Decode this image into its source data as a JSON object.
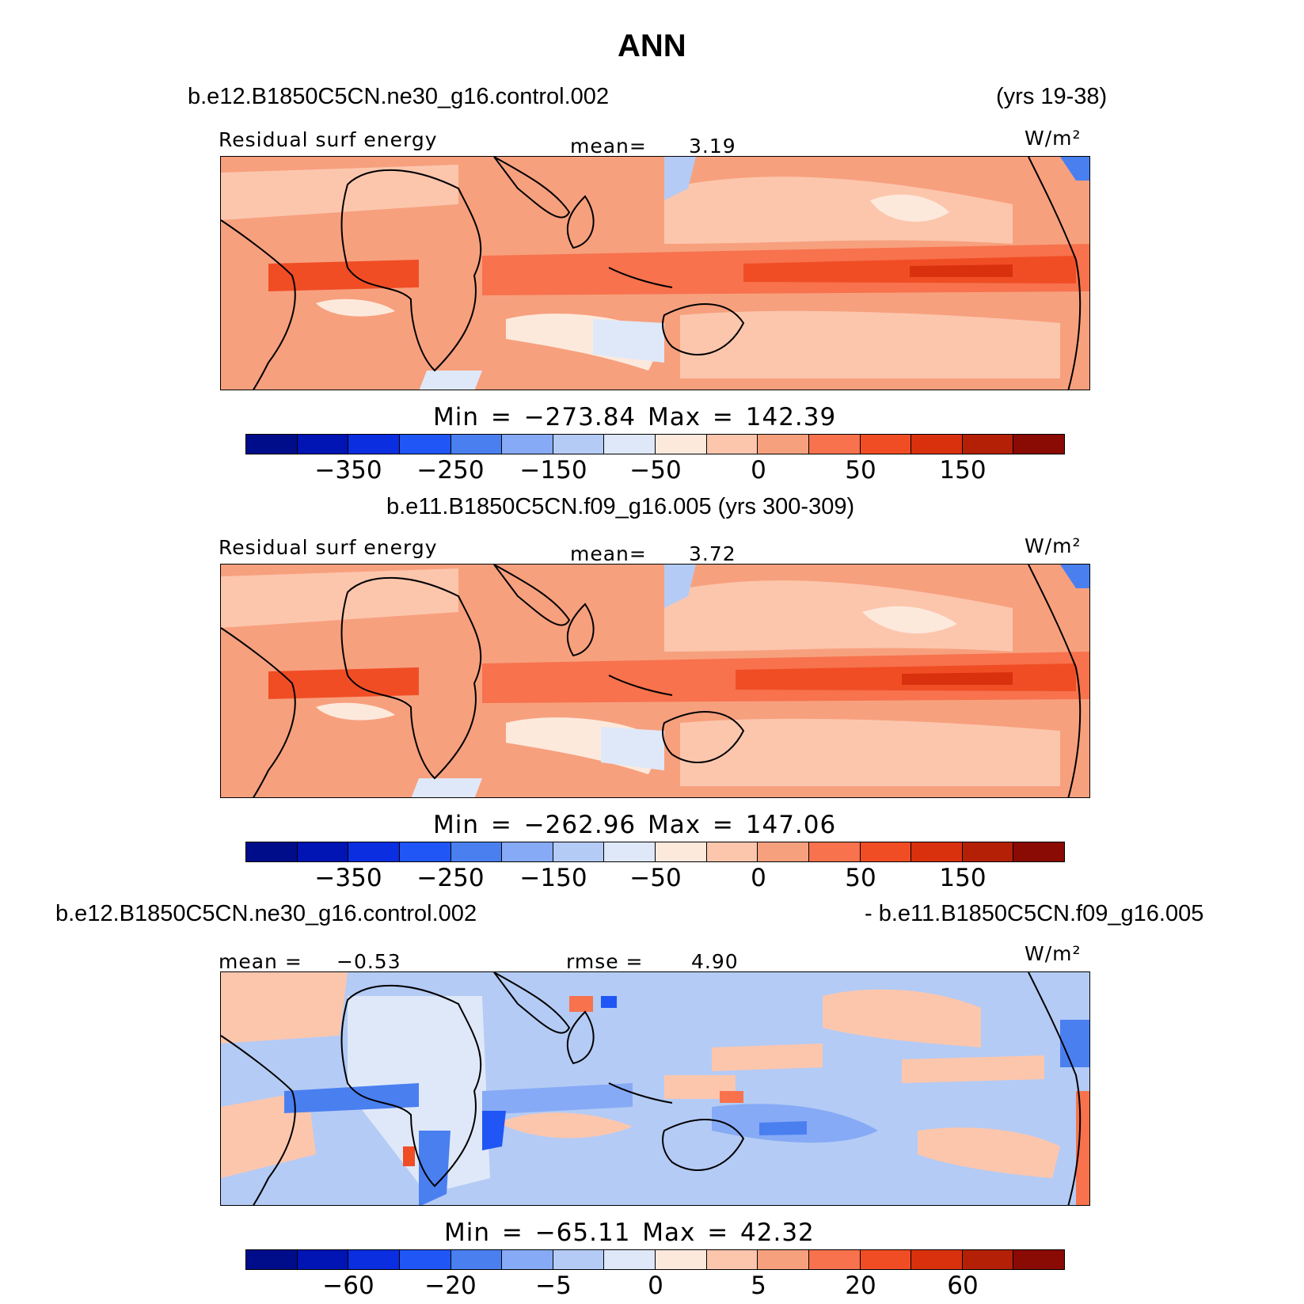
{
  "figure": {
    "title": "ANN"
  },
  "panels": [
    {
      "case_title": "b.e12.B1850C5CN.ne30_g16.control.002",
      "years": "(yrs 19-38)",
      "variable": "Residual surf energy",
      "stat_label": "mean=",
      "stat_value": "3.19",
      "units": "W/m²",
      "min_max": "Min = −273.84  Max = 142.39",
      "colorbar": {
        "colors": [
          "#000d8a",
          "#0015b4",
          "#0a2ee0",
          "#1f56f5",
          "#4a7ff0",
          "#86aaf5",
          "#b4cbf5",
          "#dfe8f8",
          "#fde9dc",
          "#fcc6ad",
          "#f7a07e",
          "#f7724d",
          "#f04d25",
          "#d9310e",
          "#b32006",
          "#8a0a04"
        ],
        "tick_labels": [
          "−350",
          "−250",
          "−150",
          "−50",
          "0",
          "50",
          "150"
        ]
      }
    },
    {
      "case_title": "b.e11.B1850C5CN.f09_g16.005 (yrs 300-309)",
      "variable": "Residual surf energy",
      "stat_label": "mean=",
      "stat_value": "3.72",
      "units": "W/m²",
      "min_max": "Min = −262.96  Max = 147.06",
      "colorbar": {
        "colors": [
          "#000d8a",
          "#0015b4",
          "#0a2ee0",
          "#1f56f5",
          "#4a7ff0",
          "#86aaf5",
          "#b4cbf5",
          "#dfe8f8",
          "#fde9dc",
          "#fcc6ad",
          "#f7a07e",
          "#f7724d",
          "#f04d25",
          "#d9310e",
          "#b32006",
          "#8a0a04"
        ],
        "tick_labels": [
          "−350",
          "−250",
          "−150",
          "−50",
          "0",
          "50",
          "150"
        ]
      }
    },
    {
      "case_title_left": "b.e12.B1850C5CN.ne30_g16.control.002",
      "case_title_right": "- b.e11.B1850C5CN.f09_g16.005",
      "stat_label": "mean =",
      "stat_value": "−0.53",
      "stat2_label": "rmse =",
      "stat2_value": "4.90",
      "units": "W/m²",
      "min_max": "Min = −65.11  Max =  42.32",
      "colorbar": {
        "colors": [
          "#000d8a",
          "#0015b4",
          "#0a2ee0",
          "#1f56f5",
          "#4a7ff0",
          "#86aaf5",
          "#b4cbf5",
          "#dfe8f8",
          "#fde9dc",
          "#fcc6ad",
          "#f7a07e",
          "#f7724d",
          "#f04d25",
          "#d9310e",
          "#b32006",
          "#8a0a04"
        ],
        "tick_labels": [
          "−60",
          "−20",
          "−5",
          "0",
          "5",
          "20",
          "60"
        ]
      }
    }
  ]
}
